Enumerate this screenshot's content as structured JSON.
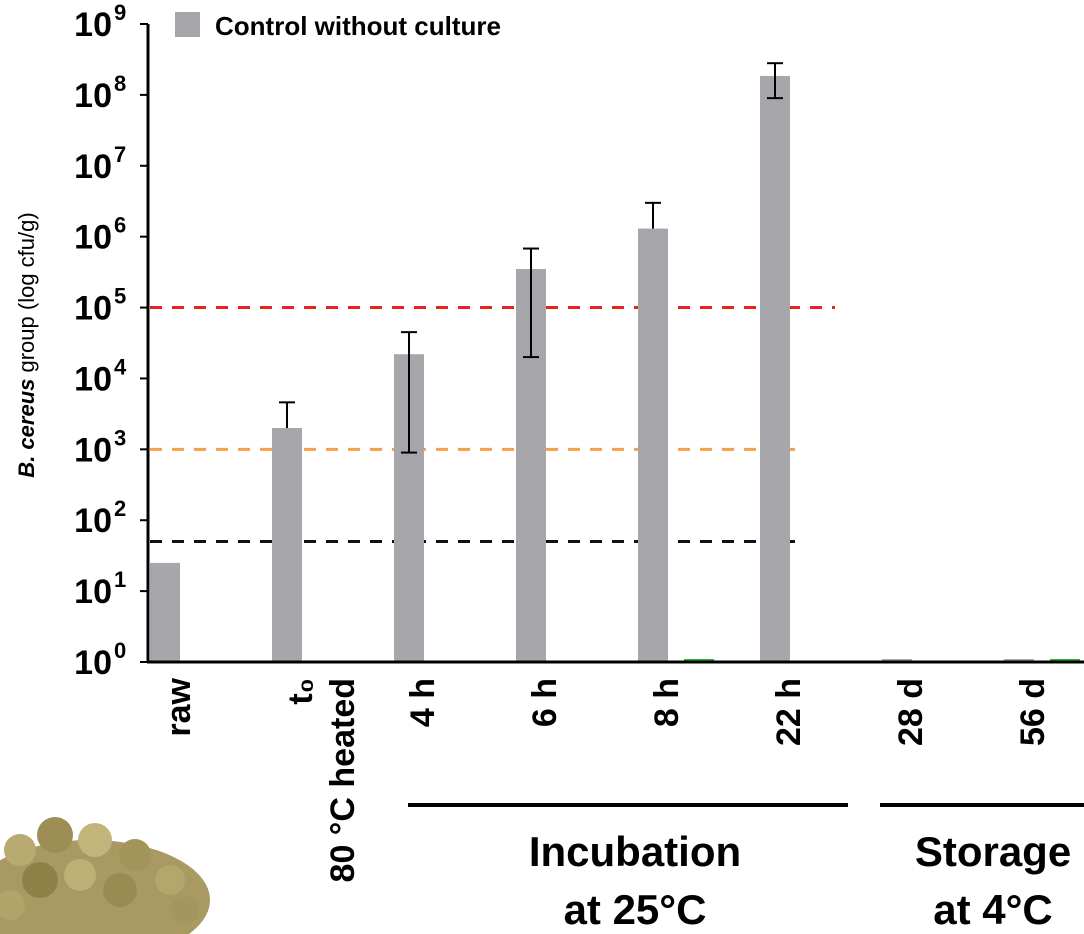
{
  "chart_data": {
    "type": "bar",
    "log_scale": true,
    "ylabel_italic": "B. cereus",
    "ylabel_rest": " group (log cfu/g)",
    "categories": [
      "raw",
      "t₀",
      "4 h",
      "6 h",
      "8 h",
      "22 h",
      "28 d",
      "56 d"
    ],
    "category_note": "80 °C heated",
    "groups": [
      {
        "lines": [
          "Incubation",
          "at 25°C"
        ]
      },
      {
        "lines": [
          "Storage",
          "at 4°C"
        ]
      }
    ],
    "series": [
      {
        "name": "Control without culture",
        "color": "#a7a6aa",
        "values": [
          25,
          2000,
          22000,
          350000,
          1300000,
          185000000,
          1.1,
          1.1
        ],
        "errors_upper": [
          null,
          4600,
          45000,
          680000,
          3000000,
          280000000,
          null,
          null
        ],
        "errors_lower": [
          null,
          null,
          900,
          20000,
          null,
          90000000,
          null,
          null
        ]
      },
      {
        "color": "#1db31d",
        "values": [
          null,
          null,
          1.05,
          1.05,
          1.1,
          1.05,
          1.05,
          1.1
        ]
      }
    ],
    "thresholds": [
      {
        "value": 100000,
        "color": "#e8231d"
      },
      {
        "value": 1000,
        "color": "#f5a04a"
      },
      {
        "value": 50,
        "color": "#111111"
      }
    ],
    "ylim": [
      1,
      1000000000
    ],
    "yticks": [
      {
        "value": 1,
        "label": "10",
        "exponent": "0"
      },
      {
        "value": 10,
        "label": "10",
        "exponent": "1"
      },
      {
        "value": 100,
        "label": "10",
        "exponent": "2"
      },
      {
        "value": 1000,
        "label": "10",
        "exponent": "3"
      },
      {
        "value": 10000,
        "label": "10",
        "exponent": "4"
      },
      {
        "value": 100000,
        "label": "10",
        "exponent": "5"
      },
      {
        "value": 1000000,
        "label": "10",
        "exponent": "6"
      },
      {
        "value": 10000000,
        "label": "10",
        "exponent": "7"
      },
      {
        "value": 100000000,
        "label": "10",
        "exponent": "8"
      },
      {
        "value": 1000000000,
        "label": "10",
        "exponent": "9"
      }
    ]
  }
}
